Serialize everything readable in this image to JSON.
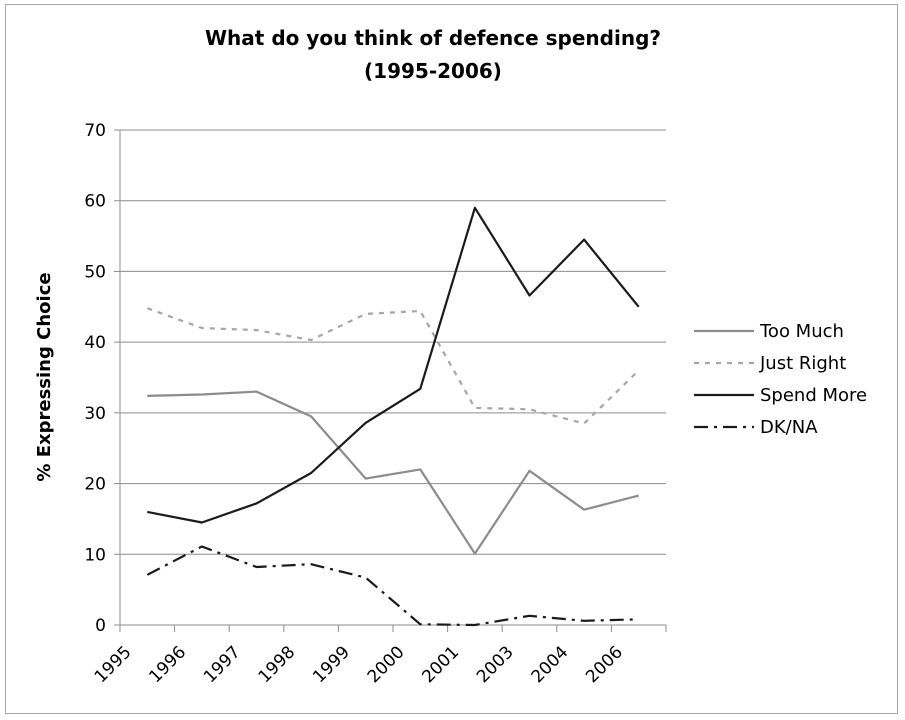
{
  "chart_data": {
    "type": "line",
    "title_line1": "What do you think of defence spending?",
    "title_line2": "(1995-2006)",
    "ylabel": "% Expressing Choice",
    "xlabel": "",
    "ylim": [
      0,
      70
    ],
    "yticks": [
      0,
      10,
      20,
      30,
      40,
      50,
      60,
      70
    ],
    "categories": [
      "1995",
      "1996",
      "1997",
      "1998",
      "1999",
      "2000",
      "2001",
      "2003",
      "2004",
      "2006"
    ],
    "grid": true,
    "legend_position": "right",
    "series": [
      {
        "name": "Too Much",
        "color": "#8c8c8c",
        "dash": "solid",
        "values": [
          32.4,
          32.6,
          33.0,
          29.5,
          20.7,
          22.0,
          10.1,
          21.8,
          16.3,
          18.3
        ]
      },
      {
        "name": "Just Right",
        "color": "#a6a6a6",
        "dash": "dotted",
        "values": [
          44.8,
          42.0,
          41.7,
          40.3,
          44.0,
          44.4,
          30.7,
          30.5,
          28.5,
          36.0
        ]
      },
      {
        "name": "Spend More",
        "color": "#1a1a1a",
        "dash": "solid",
        "values": [
          16.0,
          14.5,
          17.2,
          21.5,
          28.6,
          33.4,
          59.0,
          46.6,
          54.5,
          45.0
        ]
      },
      {
        "name": "DK/NA",
        "color": "#1a1a1a",
        "dash": "dashdot",
        "values": [
          7.1,
          11.1,
          8.2,
          8.6,
          6.7,
          0.1,
          0.0,
          1.3,
          0.6,
          0.8
        ]
      }
    ]
  }
}
